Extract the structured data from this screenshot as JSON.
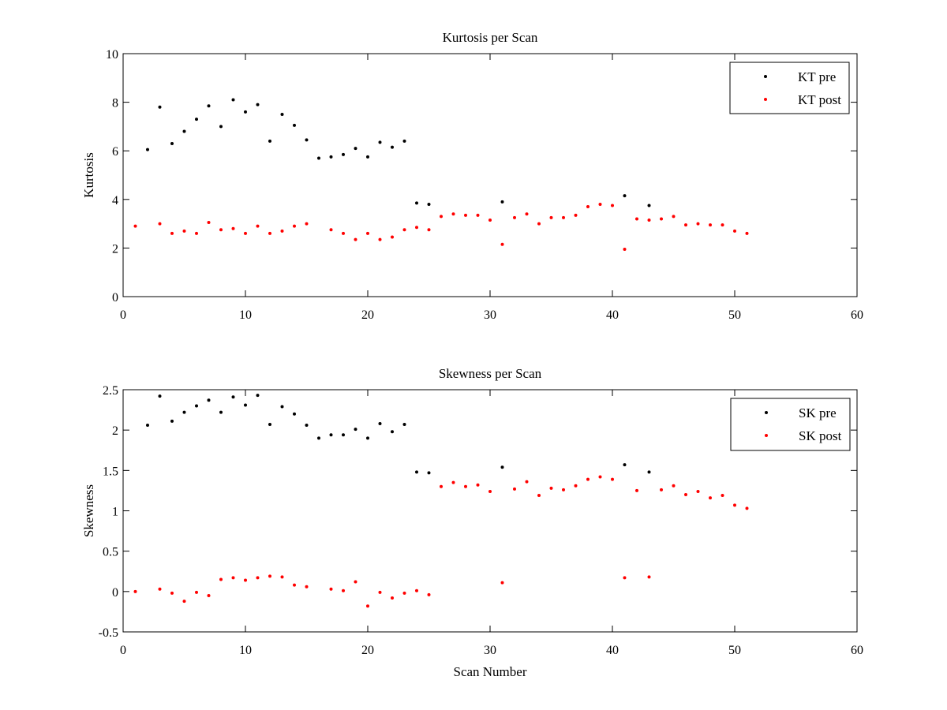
{
  "chart_data": [
    {
      "type": "scatter",
      "title": "Kurtosis per Scan",
      "xlabel": "",
      "ylabel": "Kurtosis",
      "xlim": [
        0,
        60
      ],
      "ylim": [
        0,
        10
      ],
      "xticks": [
        0,
        10,
        20,
        30,
        40,
        50,
        60
      ],
      "yticks": [
        0,
        2,
        4,
        6,
        8,
        10
      ],
      "grid": false,
      "legend_position": "top-right",
      "series": [
        {
          "name": "KT pre",
          "color": "#000000",
          "x": [
            2,
            3,
            4,
            5,
            6,
            7,
            8,
            9,
            10,
            11,
            12,
            13,
            14,
            15,
            16,
            17,
            18,
            19,
            20,
            21,
            22,
            23,
            24,
            25,
            31,
            41,
            43
          ],
          "y": [
            6.05,
            7.8,
            6.3,
            6.8,
            7.3,
            7.85,
            7.0,
            8.1,
            7.6,
            7.9,
            6.4,
            7.5,
            7.05,
            6.45,
            5.7,
            5.75,
            5.85,
            6.1,
            5.75,
            6.35,
            6.15,
            6.4,
            3.85,
            3.8,
            3.9,
            4.15,
            3.75
          ]
        },
        {
          "name": "KT post",
          "color": "#ff0000",
          "x": [
            1,
            3,
            4,
            5,
            6,
            7,
            8,
            9,
            10,
            11,
            12,
            13,
            14,
            15,
            17,
            18,
            19,
            20,
            21,
            22,
            23,
            24,
            25,
            26,
            27,
            28,
            29,
            30,
            31,
            32,
            33,
            34,
            35,
            36,
            37,
            38,
            39,
            40,
            41,
            42,
            43,
            44,
            45,
            46,
            47,
            48,
            49,
            50,
            51
          ],
          "y": [
            2.9,
            3.0,
            2.6,
            2.7,
            2.6,
            3.05,
            2.75,
            2.8,
            2.6,
            2.9,
            2.6,
            2.7,
            2.9,
            3.0,
            2.75,
            2.6,
            2.35,
            2.6,
            2.35,
            2.45,
            2.75,
            2.85,
            2.75,
            3.3,
            3.4,
            3.35,
            3.35,
            3.15,
            2.15,
            3.25,
            3.4,
            3.0,
            3.25,
            3.25,
            3.35,
            3.7,
            3.8,
            3.75,
            1.95,
            3.2,
            3.15,
            3.2,
            3.3,
            2.95,
            3.0,
            2.95,
            2.95,
            2.7,
            2.6
          ]
        }
      ]
    },
    {
      "type": "scatter",
      "title": "Skewness per Scan",
      "xlabel": "Scan Number",
      "ylabel": "Skewness",
      "xlim": [
        0,
        60
      ],
      "ylim": [
        -0.5,
        2.5
      ],
      "xticks": [
        0,
        10,
        20,
        30,
        40,
        50,
        60
      ],
      "yticks": [
        -0.5,
        0,
        0.5,
        1,
        1.5,
        2,
        2.5
      ],
      "grid": false,
      "legend_position": "top-right",
      "series": [
        {
          "name": "SK pre",
          "color": "#000000",
          "x": [
            2,
            3,
            4,
            5,
            6,
            7,
            8,
            9,
            10,
            11,
            12,
            13,
            14,
            15,
            16,
            17,
            18,
            19,
            20,
            21,
            22,
            23,
            24,
            25,
            31,
            41,
            43
          ],
          "y": [
            2.06,
            2.42,
            2.11,
            2.22,
            2.3,
            2.37,
            2.22,
            2.41,
            2.31,
            2.43,
            2.07,
            2.29,
            2.2,
            2.06,
            1.9,
            1.94,
            1.94,
            2.01,
            1.9,
            2.08,
            1.98,
            2.07,
            1.48,
            1.47,
            1.54,
            1.57,
            1.48
          ]
        },
        {
          "name": "SK post",
          "color": "#ff0000",
          "x": [
            1,
            3,
            4,
            5,
            6,
            7,
            8,
            9,
            10,
            11,
            12,
            13,
            14,
            15,
            17,
            18,
            19,
            20,
            21,
            22,
            23,
            24,
            25,
            26,
            27,
            28,
            29,
            30,
            31,
            32,
            33,
            34,
            35,
            36,
            37,
            38,
            39,
            40,
            41,
            42,
            43,
            44,
            45,
            46,
            47,
            48,
            49,
            50,
            51
          ],
          "y": [
            0.0,
            0.03,
            -0.02,
            -0.12,
            -0.01,
            -0.05,
            0.15,
            0.17,
            0.14,
            0.17,
            0.19,
            0.18,
            0.08,
            0.06,
            0.03,
            0.01,
            0.12,
            -0.18,
            -0.01,
            -0.08,
            -0.02,
            0.01,
            -0.04,
            1.3,
            1.35,
            1.3,
            1.32,
            1.24,
            0.11,
            1.27,
            1.36,
            1.19,
            1.28,
            1.26,
            1.31,
            1.39,
            1.42,
            1.39,
            0.17,
            1.25,
            0.18,
            1.26,
            1.31,
            1.2,
            1.24,
            1.16,
            1.19,
            1.07,
            1.03
          ]
        }
      ]
    }
  ]
}
